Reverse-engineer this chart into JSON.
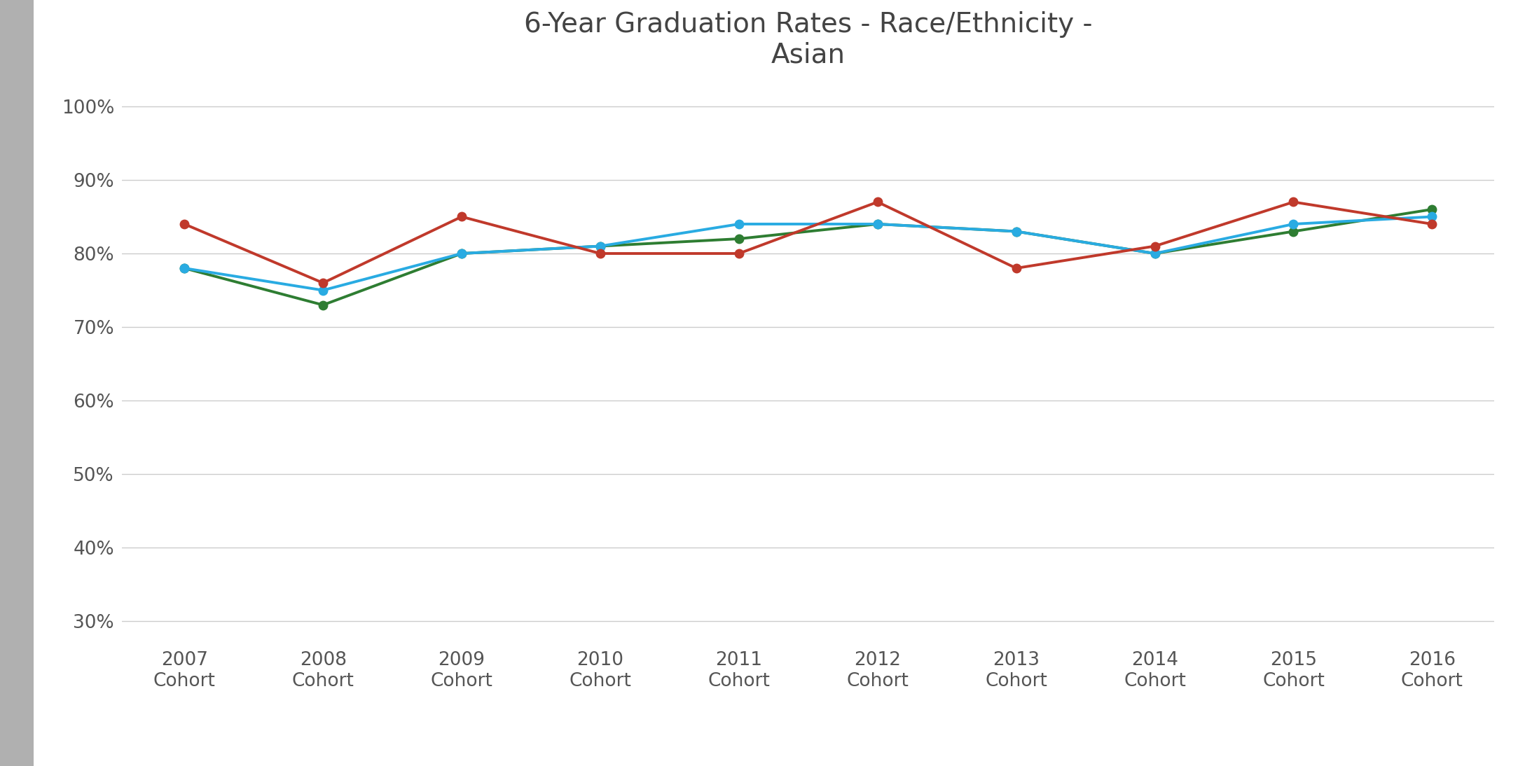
{
  "title": "6-Year Graduation Rates - Race/Ethnicity -\nAsian",
  "categories": [
    "2007\nCohort",
    "2008\nCohort",
    "2009\nCohort",
    "2010\nCohort",
    "2011\nCohort",
    "2012\nCohort",
    "2013\nCohort",
    "2014\nCohort",
    "2015\nCohort",
    "2016\nCohort"
  ],
  "all_benchmark": [
    0.78,
    0.73,
    0.8,
    0.81,
    0.82,
    0.84,
    0.83,
    0.8,
    0.83,
    0.86
  ],
  "westcoast_benchmark": [
    0.78,
    0.75,
    0.8,
    0.81,
    0.84,
    0.84,
    0.83,
    0.8,
    0.84,
    0.85
  ],
  "seattle_university": [
    0.84,
    0.76,
    0.85,
    0.8,
    0.8,
    0.87,
    0.78,
    0.81,
    0.87,
    0.84
  ],
  "all_benchmark_color": "#2e7d32",
  "westcoast_benchmark_color": "#29abe2",
  "seattle_university_color": "#c0392b",
  "ylim": [
    0.27,
    1.03
  ],
  "yticks": [
    0.3,
    0.4,
    0.5,
    0.6,
    0.7,
    0.8,
    0.9,
    1.0
  ],
  "background_color": "#ffffff",
  "sidebar_color": "#b0b0b0",
  "grid_color": "#cccccc",
  "title_fontsize": 28,
  "tick_fontsize": 19,
  "legend_fontsize": 18,
  "line_width": 2.8,
  "marker_size": 9
}
